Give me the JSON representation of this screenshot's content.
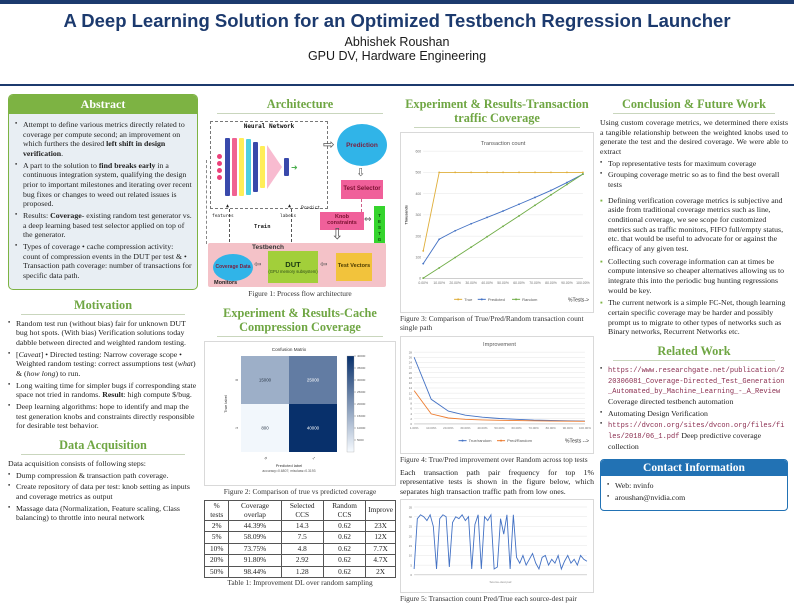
{
  "poster": {
    "title": "A Deep Learning Solution for an Optimized Testbench Regression Launcher",
    "author": "Abhishek Roushan",
    "affiliation": "GPU DV, Hardware Engineering"
  },
  "abstract": {
    "heading": "Abstract",
    "bullets": [
      "Attempt to define various metrics directly related to coverage per compute second; an improvement on which furthers the desired **left shift in design verification**.",
      "A part to the solution to **find breaks early** in a continuous integration system, qualifying the design prior to important milestones and iterating over recent bug fixes or changes to weed out related issues is proposed.",
      "Results: **Coverage**- existing random test generator vs. a deep learning based test selector applied on top of the generator.",
      "Types of coverage • cache compression activity: count of compression events in the DUT per test & • Transaction path coverage: number of transactions for specific data path."
    ]
  },
  "motivation": {
    "heading": "Motivation",
    "bullets": [
      "Random test run (without bias) fair for unknown DUT bug hot spots. (With bias) Verification solutions today dabble between directed and weighted random testing.",
      "[*Caveat*] • Directed testing: Narrow coverage scope • Weighted random testing: correct assumptions test (*what*) & (*how long*) to run.",
      "Long waiting time for simpler bugs if corresponding state space not tried in randoms. **Result**: high compute $/bug.",
      "Deep learning algorithms: hope to identify and map the test generation knobs and constraints directly responsible for desirable test behavior."
    ]
  },
  "data_acquisition": {
    "heading": "Data Acquisition",
    "intro": "Data acquisition consists of following steps:",
    "bullets": [
      "Dump compression & transaction path coverage.",
      "Create repository of data per test: knob setting as inputs and coverage metrics as output",
      "Massage data (Normalization, Feature scaling, Class balancing) to throttle into neural network"
    ]
  },
  "architecture": {
    "heading": "Architecture",
    "caption": "Figure 1: Process flow architecture",
    "nn_label": "Neural Network",
    "prediction": "Prediction",
    "test_selector": "Test Selector",
    "knob_constraints": "Knob constraints",
    "testgen": "TESTGEN",
    "testbench": "Testbench",
    "coverage_data": "Coverage Data",
    "dut": "DUT",
    "dut_sub": "(GPU memory subsystem)",
    "test_vectors": "Test Vectors",
    "monitors": "Monitors",
    "features": "features",
    "labels": "labels",
    "train": "Train",
    "predict": "Predict"
  },
  "cache": {
    "heading": "Experiment & Results-Cache Compression Coverage",
    "fig_caption": "Figure 2: Comparison of true vs predicted coverage",
    "table": {
      "headers": [
        "% tests",
        "Coverage overlap",
        "Selected CCS",
        "Random CCS",
        "Improve"
      ],
      "rows": [
        [
          "2%",
          "44.39%",
          "14.3",
          "0.62",
          "23X"
        ],
        [
          "5%",
          "58.09%",
          "7.5",
          "0.62",
          "12X"
        ],
        [
          "10%",
          "73.75%",
          "4.8",
          "0.62",
          "7.7X"
        ],
        [
          "20%",
          "91.80%",
          "2.92",
          "0.62",
          "4.7X"
        ],
        [
          "50%",
          "98.44%",
          "1.28",
          "0.62",
          "2X"
        ]
      ],
      "caption": "Table 1: Improvement DL over random sampling"
    }
  },
  "transaction": {
    "heading": "Experiment & Results-Transaction traffic Coverage",
    "fig3_caption": "Figure 3: Comparison of True/Pred/Random transaction count single path",
    "fig4_caption": "Figure 4: True/Pred improvement over Random across top tests",
    "paragraph": "Each transaction path pair frequency for top 1% representative tests is shown in the figure below, which separates high transaction traffic path from low ones.",
    "fig5_caption": "Figure 5: Transaction count Pred/True each source-dest pair"
  },
  "conclusion": {
    "heading": "Conclusion & Future Work",
    "intro": "Using custom coverage metrics, we determined there exists a tangible relationship between the weighted knobs used to generate the test and the desired coverage. We were able to extract",
    "bullets": [
      "Top representative tests for maximum coverage",
      "Grouping coverage metric so as to find the best overall tests"
    ],
    "points": [
      "Defining verification coverage metrics is subjective and aside from traditional coverage metrics such as line, conditional coverage, we see scope for customized metrics such as traffic monitors, FIFO full/empty status, etc. that would be useful to advocate for or against the efficacy of any given test.",
      "Collecting such coverage information can at times be compute intensive so cheaper alternatives allowing us to integrate this into the periodic bug hunting regressions would be key.",
      "The current network is a simple FC-Net, though learning certain specific coverage may be harder and possibly prompt us to migrate to other types of networks such as Binary networks, Recurrent Networks etc."
    ]
  },
  "related": {
    "heading": "Related Work",
    "items": [
      {
        "mono": "https://www.researchgate.net/publication/220306081_Coverage-Directed_Test_Generation_Automated_by_Machine_Learning_-_A_Review",
        "text": "Coverage directed testbench automation"
      },
      {
        "text": "Automating Design Verification"
      },
      {
        "mono": "https://dvcon.org/sites/dvcon.org/files/files/2018/06_1.pdf",
        "text": "Deep predictive coverage collection"
      }
    ]
  },
  "contact": {
    "heading": "Contact Information",
    "items": [
      "Web: nvinfo",
      "aroushan@nvidia.com"
    ]
  },
  "colors": {
    "navy": "#1c3a6e",
    "heading_green": "#6fa643",
    "box_green": "#7db343",
    "contact_blue": "#2272b4",
    "series_true": "#dfae3a",
    "series_predicted": "#4472c4",
    "series_random": "#70ad47",
    "series_orange": "#ed7d31"
  },
  "chart_data": [
    {
      "type": "line",
      "title": "Transaction count",
      "ylabel": "Thousands",
      "xlabel": "%Tests->",
      "x": [
        "0.00%",
        "10.00%",
        "20.00%",
        "30.00%",
        "40.00%",
        "50.00%",
        "60.00%",
        "70.00%",
        "80.00%",
        "90.00%",
        "100.00%"
      ],
      "series": [
        {
          "name": "True",
          "color": "#dfae3a",
          "values": [
            130,
            500,
            500,
            500,
            500,
            500,
            500,
            500,
            500,
            500,
            500
          ]
        },
        {
          "name": "Predicted",
          "color": "#4472c4",
          "values": [
            70,
            185,
            225,
            258,
            288,
            318,
            350,
            382,
            415,
            452,
            492
          ]
        },
        {
          "name": "Random",
          "color": "#70ad47",
          "values": [
            2,
            50,
            99,
            148,
            197,
            246,
            295,
            345,
            394,
            443,
            492
          ]
        }
      ],
      "ylim": [
        0,
        600
      ],
      "ytick": 100,
      "legend": "bottom",
      "grid": true
    },
    {
      "type": "line",
      "title": "Improvement",
      "xlabel": "%Tests -->",
      "x": [
        "1.00%",
        "10.00%",
        "20.00%",
        "30.00%",
        "40.00%",
        "50.00%",
        "60.00%",
        "70.00%",
        "80.00%",
        "90.00%",
        "100.00%"
      ],
      "series": [
        {
          "name": "True/random",
          "color": "#4472c4",
          "values": [
            26,
            9.6,
            5,
            3.4,
            2.6,
            2.1,
            1.8,
            1.5,
            1.35,
            1.2,
            1.1
          ]
        },
        {
          "name": "Pred/Random",
          "color": "#ed7d31",
          "values": [
            13,
            3.9,
            2.3,
            1.8,
            1.55,
            1.4,
            1.3,
            1.2,
            1.12,
            1.06,
            1
          ]
        }
      ],
      "ylim": [
        0,
        28
      ],
      "ytick": 2,
      "legend": "bottom",
      "grid": true
    },
    {
      "type": "line",
      "xlabel": "Source-dest pair",
      "series": [
        {
          "name": "Pred/True",
          "color": "#4472c4",
          "values": [
            3,
            29,
            31,
            30,
            28,
            31,
            25,
            3,
            29,
            31,
            30,
            4,
            27,
            30,
            29,
            31,
            28,
            30,
            3,
            26,
            31,
            3,
            30,
            28,
            31,
            3,
            4,
            29,
            21,
            31,
            3,
            31,
            9,
            6,
            10,
            5,
            8,
            11,
            6,
            3,
            9,
            10,
            5,
            8,
            6,
            10,
            3,
            7,
            10,
            6,
            8,
            5,
            10,
            8,
            7
          ]
        }
      ],
      "ylim": [
        0,
        35
      ],
      "ytick": 5,
      "legend": "none",
      "grid": true
    },
    {
      "type": "heatmap",
      "title": "Confusion Matrix",
      "xlabel": "Predicted label",
      "xlabel_sub": "accuracy=0.6807; misclass=0.3193",
      "ylabel": "True label",
      "x_labels": [
        "0",
        "1"
      ],
      "y_labels": [
        "0",
        "1"
      ],
      "matrix": [
        [
          15000,
          25000
        ],
        [
          800,
          40000
        ]
      ],
      "colorbar_max": 40000,
      "colorbar_ticks": [
        40000,
        35000,
        30000,
        25000,
        20000,
        15000,
        10000,
        5000
      ]
    }
  ]
}
